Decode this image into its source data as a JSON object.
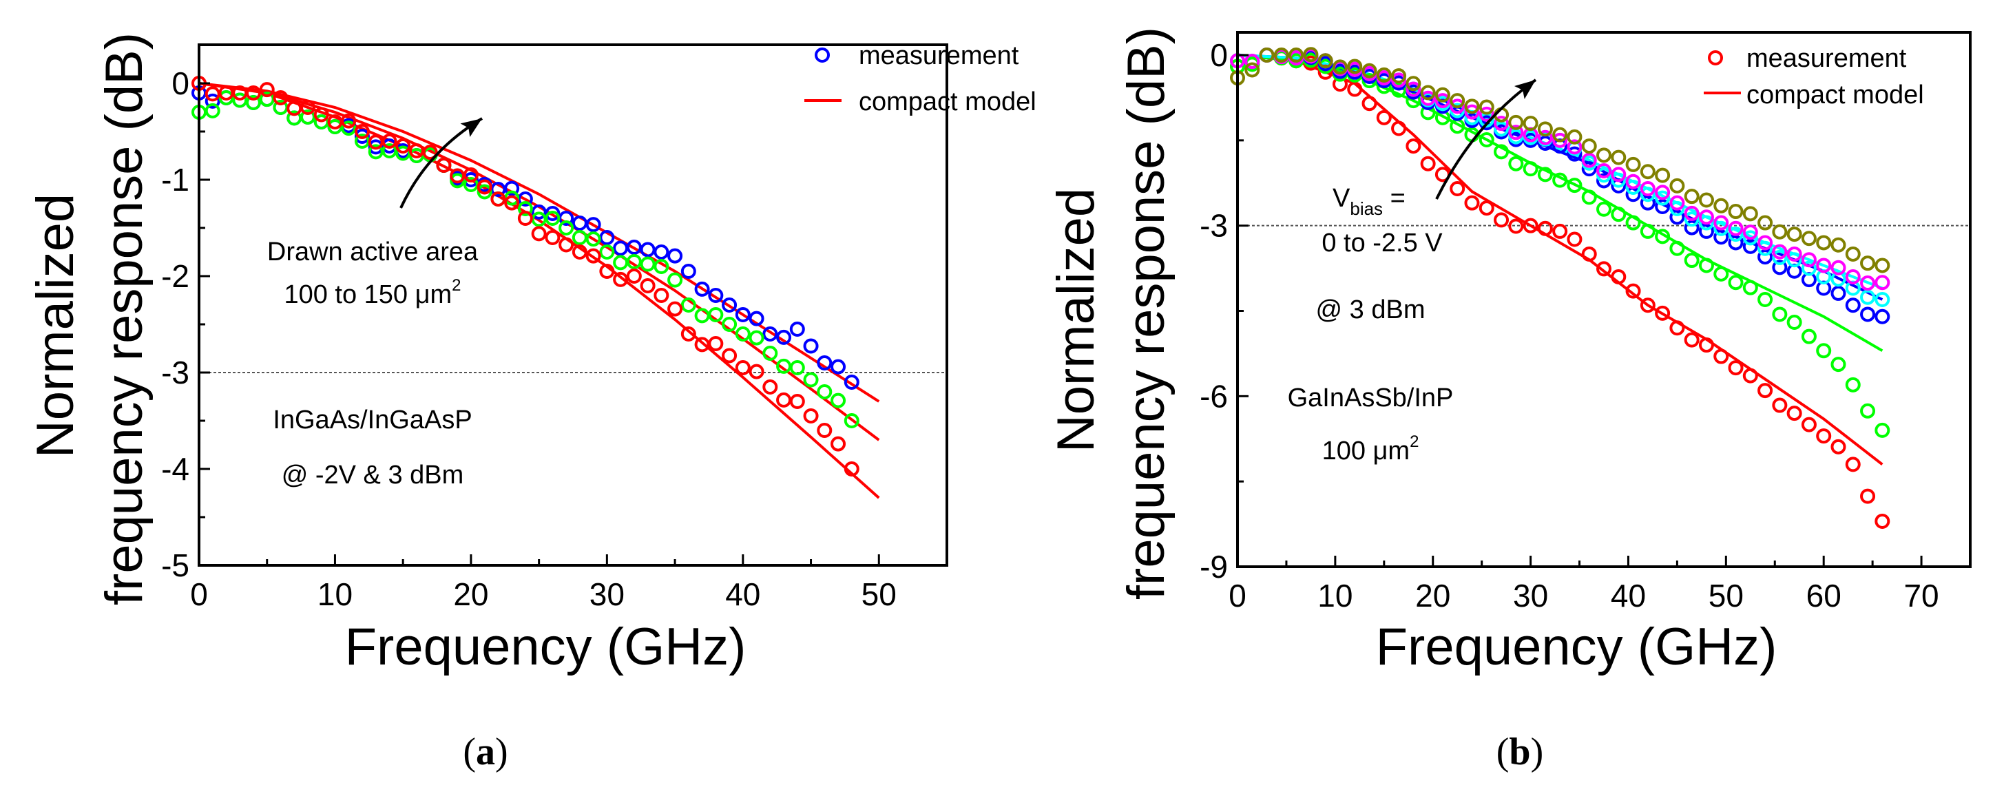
{
  "chart_data": [
    {
      "type": "scatter",
      "caption_prefix": "(",
      "caption_letter": "a",
      "caption_suffix": ")",
      "xlabel": "Frequency (GHz)",
      "ylabel_line1": "Normalized",
      "ylabel_line2": "frequency response (dB)",
      "xlim": [
        0,
        55
      ],
      "ylim": [
        -5,
        0.4
      ],
      "xticks": [
        0,
        10,
        20,
        30,
        40,
        50
      ],
      "yticks": [
        0,
        -1,
        -2,
        -3,
        -4,
        -5
      ],
      "reference_line_y": -3,
      "legend": {
        "placement": "top-right",
        "measurement": "measurement",
        "model": "compact model",
        "marker_color": "#0000ff",
        "line_color": "#ff0000"
      },
      "annotations": {
        "line1": "Drawn active area",
        "line2": "100 to 150 μm",
        "line2_sup": "2",
        "line3": "InGaAs/InGaAsP",
        "line4": "@ -2V & 3 dBm"
      },
      "x": [
        0,
        2,
        4,
        6,
        8,
        10,
        12,
        14,
        16,
        18,
        20,
        22,
        24,
        26,
        28,
        30,
        32,
        34,
        36,
        38,
        40,
        42,
        44,
        46,
        48
      ],
      "series": [
        {
          "name": "measurement (blue)",
          "color": "#0000ff",
          "values": [
            -0.1,
            -0.15,
            -0.2,
            -0.25,
            -0.35,
            -0.45,
            -0.55,
            -0.65,
            -0.75,
            -0.85,
            -1.0,
            -1.1,
            -1.2,
            -1.35,
            -1.45,
            -1.6,
            -1.7,
            -1.75,
            -1.95,
            -2.2,
            -2.4,
            -2.6,
            -2.55,
            -2.9,
            -3.1
          ]
        },
        {
          "name": "measurement (green)",
          "color": "#00ff00",
          "values": [
            -0.3,
            -0.15,
            -0.2,
            -0.25,
            -0.35,
            -0.45,
            -0.6,
            -0.7,
            -0.75,
            -0.85,
            -1.05,
            -1.2,
            -1.3,
            -1.4,
            -1.6,
            -1.75,
            -1.85,
            -1.9,
            -2.3,
            -2.4,
            -2.6,
            -2.8,
            -2.95,
            -3.2,
            -3.5
          ]
        },
        {
          "name": "measurement (red)",
          "color": "#ff0000",
          "values": [
            0,
            -0.1,
            -0.1,
            -0.15,
            -0.25,
            -0.4,
            -0.5,
            -0.6,
            -0.7,
            -0.85,
            -0.95,
            -1.2,
            -1.4,
            -1.6,
            -1.75,
            -1.95,
            -2.0,
            -2.2,
            -2.6,
            -2.7,
            -2.95,
            -3.15,
            -3.3,
            -3.6,
            -4.0
          ]
        }
      ],
      "model_x": [
        0,
        5,
        10,
        15,
        20,
        25,
        30,
        35,
        40,
        45,
        50
      ],
      "models": [
        {
          "name": "compact model 1",
          "color": "#ff0000",
          "values": [
            0,
            -0.08,
            -0.25,
            -0.5,
            -0.8,
            -1.15,
            -1.55,
            -1.95,
            -2.4,
            -2.85,
            -3.3
          ]
        },
        {
          "name": "compact model 2",
          "color": "#ff0000",
          "values": [
            0,
            -0.09,
            -0.3,
            -0.57,
            -0.9,
            -1.28,
            -1.7,
            -2.15,
            -2.65,
            -3.17,
            -3.7
          ]
        },
        {
          "name": "compact model 3",
          "color": "#ff0000",
          "values": [
            0,
            -0.1,
            -0.35,
            -0.65,
            -1.0,
            -1.42,
            -1.9,
            -2.45,
            -3.05,
            -3.67,
            -4.3
          ]
        }
      ]
    },
    {
      "type": "scatter",
      "caption_prefix": "(",
      "caption_letter": "b",
      "caption_suffix": ")",
      "xlabel": "Frequency (GHz)",
      "ylabel_line1": "Normalized",
      "ylabel_line2": "frequency response (dB)",
      "xlim": [
        0,
        75
      ],
      "ylim": [
        -9,
        0.4
      ],
      "xticks": [
        0,
        10,
        20,
        30,
        40,
        50,
        60,
        70
      ],
      "yticks": [
        0,
        -3,
        -6,
        -9
      ],
      "reference_line_y": -3,
      "legend": {
        "placement": "top-right",
        "measurement": "measurement",
        "model": "compact model",
        "marker_color": "#ff0000",
        "line_color": "#ff0000"
      },
      "annotations": {
        "vbias_v": "V",
        "vbias_sub": "bias",
        "vbias_eq": " =",
        "line2": "0 to -2.5 V",
        "line3": "@ 3 dBm",
        "line4": "GaInAsSb/InP",
        "line5": "100 μm",
        "line5_sup": "2"
      },
      "x": [
        0,
        3,
        6,
        9,
        12,
        15,
        18,
        21,
        24,
        27,
        30,
        33,
        36,
        39,
        42,
        45,
        48,
        51,
        54,
        57,
        60,
        63,
        66
      ],
      "series": [
        {
          "name": "measurement (red)",
          "color": "#ff0000",
          "values": [
            -0.2,
            0,
            -0.1,
            -0.3,
            -0.6,
            -1.1,
            -1.6,
            -2.1,
            -2.6,
            -2.9,
            -3.0,
            -3.1,
            -3.5,
            -3.9,
            -4.4,
            -4.8,
            -5.1,
            -5.5,
            -5.9,
            -6.3,
            -6.7,
            -7.2,
            -8.2
          ]
        },
        {
          "name": "measurement (green)",
          "color": "#00ff00",
          "values": [
            -0.2,
            0,
            -0.1,
            -0.2,
            -0.35,
            -0.55,
            -0.8,
            -1.1,
            -1.4,
            -1.7,
            -2.0,
            -2.2,
            -2.5,
            -2.8,
            -3.1,
            -3.4,
            -3.7,
            -4.0,
            -4.3,
            -4.7,
            -5.2,
            -5.8,
            -6.6
          ]
        },
        {
          "name": "measurement (blue)",
          "color": "#0000ff",
          "values": [
            -0.1,
            0,
            -0.05,
            -0.15,
            -0.3,
            -0.45,
            -0.65,
            -0.9,
            -1.15,
            -1.35,
            -1.5,
            -1.6,
            -2.0,
            -2.3,
            -2.6,
            -2.85,
            -3.1,
            -3.3,
            -3.55,
            -3.8,
            -4.1,
            -4.4,
            -4.6
          ]
        },
        {
          "name": "measurement (cyan)",
          "color": "#00ffff",
          "values": [
            -0.1,
            0,
            -0.05,
            -0.1,
            -0.25,
            -0.4,
            -0.6,
            -0.85,
            -1.1,
            -1.3,
            -1.45,
            -1.5,
            -1.9,
            -2.2,
            -2.45,
            -2.7,
            -2.95,
            -3.15,
            -3.4,
            -3.6,
            -3.9,
            -4.1,
            -4.3
          ]
        },
        {
          "name": "measurement (magenta)",
          "color": "#ff00ff",
          "values": [
            -0.1,
            0,
            -0.05,
            -0.1,
            -0.25,
            -0.4,
            -0.6,
            -0.8,
            -1.0,
            -1.2,
            -1.4,
            -1.5,
            -1.85,
            -2.1,
            -2.35,
            -2.6,
            -2.85,
            -3.05,
            -3.3,
            -3.5,
            -3.7,
            -3.9,
            -4.0
          ]
        },
        {
          "name": "measurement (olive)",
          "color": "#808000",
          "values": [
            -0.4,
            0,
            0,
            -0.1,
            -0.2,
            -0.35,
            -0.5,
            -0.7,
            -0.9,
            -1.05,
            -1.2,
            -1.4,
            -1.6,
            -1.8,
            -2.05,
            -2.3,
            -2.55,
            -2.75,
            -2.95,
            -3.15,
            -3.3,
            -3.5,
            -3.7
          ]
        }
      ],
      "model_x": [
        0,
        6,
        12,
        18,
        24,
        30,
        36,
        42,
        48,
        54,
        60,
        66
      ],
      "models": [
        {
          "name": "compact model red",
          "color": "#ff0000",
          "values": [
            0,
            -0.1,
            -0.5,
            -1.4,
            -2.4,
            -3.0,
            -3.6,
            -4.4,
            -5.0,
            -5.7,
            -6.4,
            -7.2
          ]
        },
        {
          "name": "compact model green",
          "color": "#00ff00",
          "values": [
            0,
            -0.1,
            -0.35,
            -0.8,
            -1.35,
            -1.9,
            -2.4,
            -3.0,
            -3.6,
            -4.1,
            -4.6,
            -5.2
          ]
        },
        {
          "name": "compact model blue",
          "color": "#0000ff",
          "values": [
            0,
            -0.05,
            -0.3,
            -0.65,
            -1.1,
            -1.5,
            -1.9,
            -2.5,
            -3.0,
            -3.4,
            -3.8,
            -4.3
          ]
        },
        {
          "name": "compact model cyan",
          "color": "#00ffff",
          "values": [
            0,
            -0.05,
            -0.25,
            -0.6,
            -1.0,
            -1.45,
            -1.85,
            -2.35,
            -2.85,
            -3.3,
            -3.7,
            -4.1
          ]
        }
      ]
    }
  ]
}
